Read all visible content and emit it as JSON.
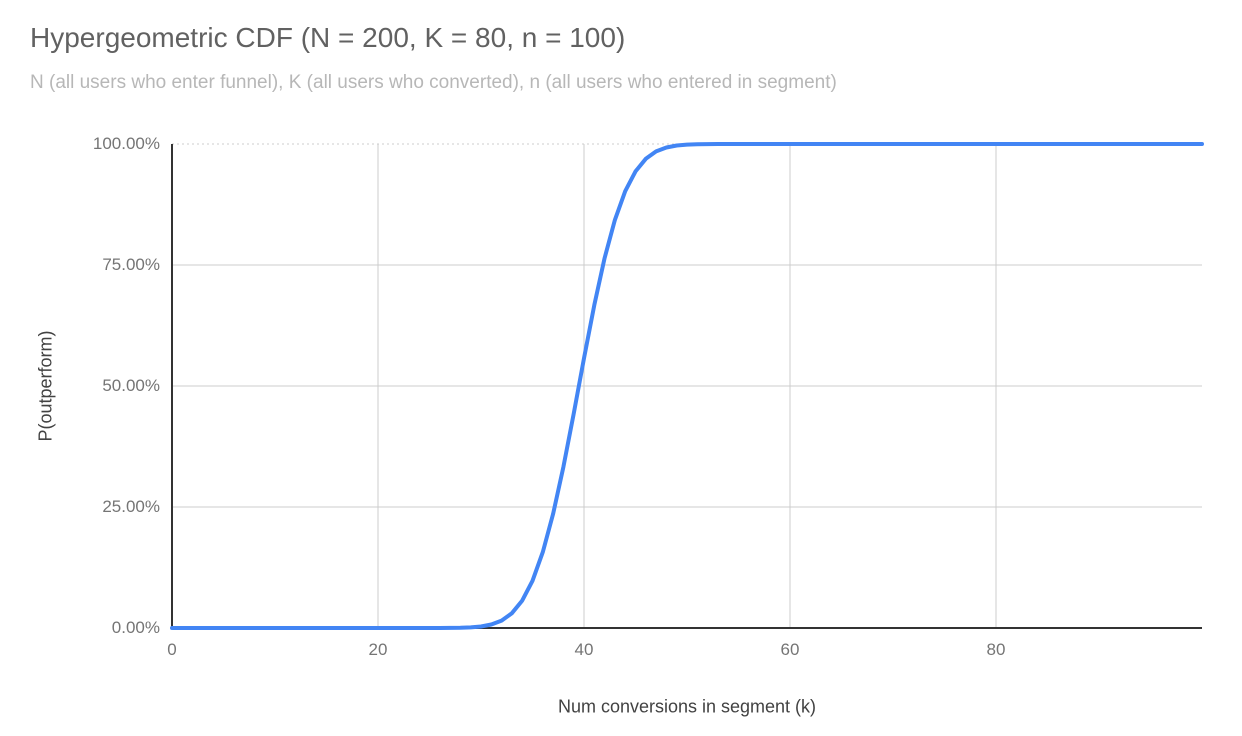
{
  "chart_data": {
    "type": "line",
    "title": "Hypergeometric CDF (N = 200, K = 80, n = 100)",
    "subtitle": "N (all users who enter funnel), K (all users who converted), n (all users who entered in segment)",
    "xlabel": "Num conversions in segment (k)",
    "ylabel": "P(outperform)",
    "xlim": [
      0,
      100
    ],
    "ylim": [
      0,
      1
    ],
    "xticks": [
      0,
      20,
      40,
      60,
      80
    ],
    "xtick_labels": [
      "0",
      "20",
      "40",
      "60",
      "80"
    ],
    "yticks": [
      0,
      0.25,
      0.5,
      0.75,
      1
    ],
    "ytick_labels": [
      "0.00%",
      "25.00%",
      "50.00%",
      "75.00%",
      "100.00%"
    ],
    "grid": true,
    "legend": "none",
    "grid_color": "#cccccc",
    "axis_color": "#333333",
    "series": [
      {
        "name": "P(outperform)",
        "color": "#4285f4",
        "x": [
          0,
          1,
          2,
          3,
          4,
          5,
          6,
          7,
          8,
          9,
          10,
          11,
          12,
          13,
          14,
          15,
          16,
          17,
          18,
          19,
          20,
          21,
          22,
          23,
          24,
          25,
          26,
          27,
          28,
          29,
          30,
          31,
          32,
          33,
          34,
          35,
          36,
          37,
          38,
          39,
          40,
          41,
          42,
          43,
          44,
          45,
          46,
          47,
          48,
          49,
          50,
          51,
          52,
          53,
          54,
          55,
          56,
          57,
          58,
          59,
          60,
          61,
          62,
          63,
          64,
          65,
          66,
          67,
          68,
          69,
          70,
          71,
          72,
          73,
          74,
          75,
          76,
          77,
          78,
          79,
          80,
          81,
          82,
          83,
          84,
          85,
          86,
          87,
          88,
          89,
          90,
          91,
          92,
          93,
          94,
          95,
          96,
          97,
          98,
          99,
          100
        ],
        "y": [
          0,
          0,
          0,
          0,
          0,
          0,
          0,
          0,
          0,
          0,
          0,
          0,
          0,
          0,
          0,
          0,
          0,
          0,
          0,
          0,
          0,
          0,
          0,
          0,
          0,
          1e-05,
          5e-05,
          0.00016,
          0.00046,
          0.00125,
          0.00311,
          0.00718,
          0.01539,
          0.03062,
          0.05662,
          0.09749,
          0.15675,
          0.23576,
          0.33287,
          0.44275,
          0.55725,
          0.66713,
          0.76424,
          0.84325,
          0.90251,
          0.94338,
          0.96938,
          0.98461,
          0.99282,
          0.99689,
          0.99875,
          0.99954,
          0.99984,
          0.99995,
          0.99999,
          1,
          1,
          1,
          1,
          1,
          1,
          1,
          1,
          1,
          1,
          1,
          1,
          1,
          1,
          1,
          1,
          1,
          1,
          1,
          1,
          1,
          1,
          1,
          1,
          1,
          1,
          1,
          1,
          1,
          1,
          1,
          1,
          1,
          1,
          1,
          1,
          1,
          1,
          1,
          1,
          1,
          1,
          1,
          1,
          1,
          1
        ]
      }
    ]
  }
}
